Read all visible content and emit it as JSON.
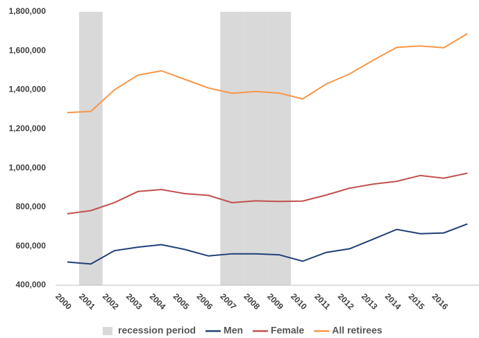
{
  "chart_data": {
    "type": "line",
    "categories": [
      "2000",
      "2001",
      "2002",
      "2003",
      "2004",
      "2005",
      "2006",
      "2007",
      "2008",
      "2009",
      "2010",
      "2011",
      "2012",
      "2013",
      "2014",
      "2015",
      "2016",
      null
    ],
    "series": [
      {
        "name": "recession period",
        "type": "bar",
        "color": "#d9d9d9",
        "values": [
          null,
          1800000,
          null,
          null,
          null,
          null,
          null,
          1800000,
          1800000,
          1800000,
          null,
          null,
          null,
          null,
          null,
          null,
          null,
          null
        ]
      },
      {
        "name": "Men",
        "color": "#1f3e77",
        "values": [
          519000,
          509000,
          577000,
          595000,
          608000,
          583000,
          550000,
          561000,
          561000,
          556000,
          523000,
          568000,
          587000,
          636000,
          686000,
          664000,
          668000,
          714000
        ]
      },
      {
        "name": "Female",
        "color": "#c0504d",
        "values": [
          766000,
          782000,
          823000,
          880000,
          890000,
          869000,
          860000,
          823000,
          832000,
          829000,
          831000,
          862000,
          897000,
          918000,
          932000,
          962000,
          948000,
          974000
        ]
      },
      {
        "name": "All retirees",
        "color": "#f79646",
        "values": [
          1284000,
          1290000,
          1400000,
          1476000,
          1498000,
          1454000,
          1410000,
          1383000,
          1392000,
          1384000,
          1354000,
          1430000,
          1482000,
          1552000,
          1618000,
          1625000,
          1616000,
          1688000
        ]
      }
    ],
    "ylim": [
      400000,
      1800000
    ],
    "yticks": [
      {
        "value": 400000,
        "label": "400,000"
      },
      {
        "value": 600000,
        "label": "600,000"
      },
      {
        "value": 800000,
        "label": "800,000"
      },
      {
        "value": 1000000,
        "label": "1,000,000"
      },
      {
        "value": 1200000,
        "label": "1,200,000"
      },
      {
        "value": 1400000,
        "label": "1,400,000"
      },
      {
        "value": 1600000,
        "label": "1,600,000"
      },
      {
        "value": 1800000,
        "label": "1,800,000"
      }
    ],
    "legend": "bottom"
  }
}
